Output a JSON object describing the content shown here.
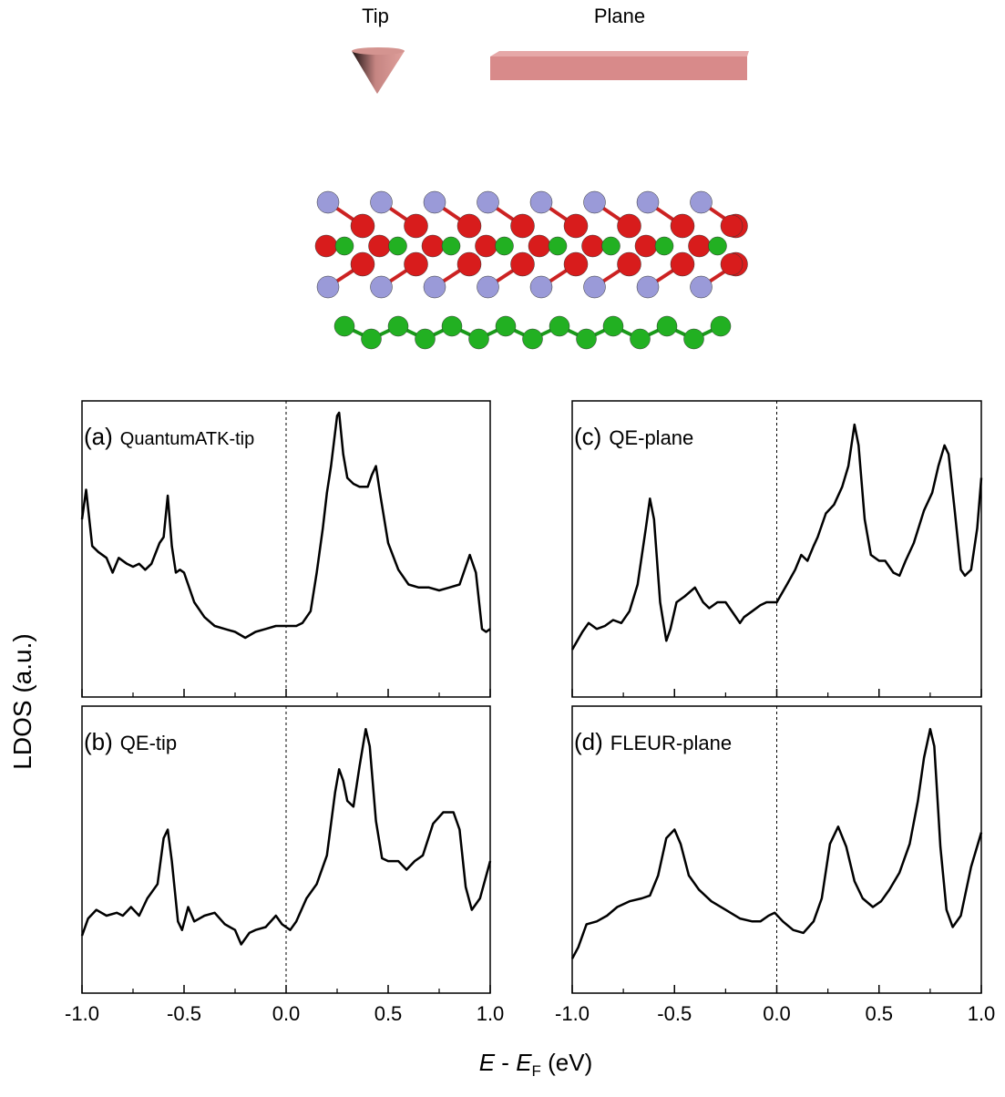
{
  "schematic": {
    "tip": "Tip",
    "plane": "Plane"
  },
  "axis_labels": {
    "y": "LDOS (a.u.)",
    "x": [
      "E",
      " - ",
      "E",
      "F",
      " (eV)"
    ]
  },
  "chart_data": [
    {
      "type": "line",
      "panel": "(a)",
      "label": "QuantumATK-tip",
      "color": "#000000",
      "xlim": [
        -1,
        1
      ],
      "ylim": [
        0,
        100
      ],
      "xticks": [
        -1,
        -0.5,
        0,
        0.5,
        1
      ],
      "xminorticks": [
        -0.75,
        -0.25,
        0.25,
        0.75
      ],
      "x": [
        -1.0,
        -0.98,
        -0.95,
        -0.92,
        -0.88,
        -0.85,
        -0.82,
        -0.78,
        -0.75,
        -0.72,
        -0.69,
        -0.66,
        -0.62,
        -0.6,
        -0.58,
        -0.56,
        -0.54,
        -0.52,
        -0.5,
        -0.45,
        -0.4,
        -0.35,
        -0.3,
        -0.25,
        -0.2,
        -0.15,
        -0.1,
        -0.05,
        0.0,
        0.05,
        0.08,
        0.12,
        0.15,
        0.18,
        0.2,
        0.22,
        0.25,
        0.26,
        0.28,
        0.3,
        0.33,
        0.36,
        0.4,
        0.42,
        0.44,
        0.46,
        0.5,
        0.55,
        0.6,
        0.65,
        0.7,
        0.75,
        0.8,
        0.85,
        0.9,
        0.93,
        0.96,
        0.98,
        1.0
      ],
      "values": [
        60,
        70,
        51,
        49,
        47,
        42,
        47,
        45,
        44,
        45,
        43,
        45,
        52,
        54,
        68,
        51,
        42,
        43,
        42,
        32,
        27,
        24,
        23,
        22,
        20,
        22,
        23,
        24,
        24,
        24,
        25,
        29,
        42,
        57,
        69,
        78,
        95,
        96,
        82,
        74,
        72,
        71,
        71,
        75,
        78,
        69,
        52,
        43,
        38,
        37,
        37,
        36,
        37,
        38,
        48,
        42,
        23,
        22,
        23
      ]
    },
    {
      "type": "line",
      "panel": "(b)",
      "label": "QE-tip",
      "color": "#000000",
      "xlim": [
        -1,
        1
      ],
      "ylim": [
        0,
        100
      ],
      "xticks": [
        {
          "value": -1,
          "label": "-1.0"
        },
        {
          "value": -0.5,
          "label": "-0.5"
        },
        {
          "value": 0,
          "label": "0.0"
        },
        {
          "value": 0.5,
          "label": "0.5"
        },
        {
          "value": 1,
          "label": "1.0"
        }
      ],
      "xminorticks": [
        -0.75,
        -0.25,
        0.25,
        0.75
      ],
      "x": [
        -1.0,
        -0.97,
        -0.93,
        -0.88,
        -0.83,
        -0.8,
        -0.76,
        -0.72,
        -0.68,
        -0.63,
        -0.6,
        -0.58,
        -0.56,
        -0.53,
        -0.51,
        -0.48,
        -0.45,
        -0.4,
        -0.35,
        -0.3,
        -0.25,
        -0.22,
        -0.18,
        -0.15,
        -0.1,
        -0.05,
        -0.02,
        0.02,
        0.05,
        0.1,
        0.15,
        0.2,
        0.24,
        0.26,
        0.28,
        0.3,
        0.33,
        0.36,
        0.39,
        0.41,
        0.44,
        0.47,
        0.5,
        0.55,
        0.59,
        0.63,
        0.67,
        0.72,
        0.77,
        0.82,
        0.85,
        0.88,
        0.91,
        0.95,
        1.0
      ],
      "values": [
        20,
        26,
        29,
        27,
        28,
        27,
        30,
        27,
        33,
        38,
        54,
        57,
        46,
        25,
        22,
        30,
        25,
        27,
        28,
        24,
        22,
        17,
        21,
        22,
        23,
        27,
        24,
        22,
        25,
        33,
        38,
        48,
        70,
        78,
        74,
        67,
        65,
        79,
        92,
        86,
        60,
        47,
        46,
        46,
        43,
        46,
        48,
        59,
        63,
        63,
        57,
        37,
        29,
        33,
        46
      ]
    },
    {
      "type": "line",
      "panel": "(c)",
      "label": "QE-plane",
      "color": "#000000",
      "xlim": [
        -1,
        1
      ],
      "ylim": [
        0,
        100
      ],
      "xticks": [
        -1,
        -0.5,
        0,
        0.5,
        1
      ],
      "xminorticks": [
        -0.75,
        -0.25,
        0.25,
        0.75
      ],
      "x": [
        -1.0,
        -0.95,
        -0.92,
        -0.88,
        -0.84,
        -0.8,
        -0.76,
        -0.72,
        -0.68,
        -0.64,
        -0.62,
        -0.6,
        -0.57,
        -0.54,
        -0.52,
        -0.49,
        -0.45,
        -0.4,
        -0.36,
        -0.33,
        -0.29,
        -0.25,
        -0.21,
        -0.18,
        -0.16,
        -0.12,
        -0.08,
        -0.05,
        0.0,
        0.05,
        0.09,
        0.12,
        0.15,
        0.18,
        0.2,
        0.24,
        0.28,
        0.32,
        0.35,
        0.38,
        0.4,
        0.43,
        0.46,
        0.5,
        0.53,
        0.57,
        0.6,
        0.63,
        0.67,
        0.72,
        0.76,
        0.79,
        0.82,
        0.84,
        0.87,
        0.9,
        0.92,
        0.95,
        0.98,
        1.0
      ],
      "values": [
        16,
        22,
        25,
        23,
        24,
        26,
        25,
        29,
        38,
        57,
        67,
        60,
        32,
        19,
        23,
        32,
        34,
        37,
        32,
        30,
        32,
        32,
        28,
        25,
        27,
        29,
        31,
        32,
        32,
        38,
        43,
        48,
        46,
        51,
        54,
        62,
        65,
        71,
        78,
        92,
        85,
        60,
        48,
        46,
        46,
        42,
        41,
        46,
        52,
        63,
        69,
        78,
        85,
        82,
        63,
        43,
        41,
        43,
        57,
        74
      ]
    },
    {
      "type": "line",
      "panel": "(d)",
      "label": "FLEUR-plane",
      "color": "#000000",
      "xlim": [
        -1,
        1
      ],
      "ylim": [
        0,
        100
      ],
      "xticks": [
        {
          "value": -1,
          "label": "-1.0"
        },
        {
          "value": -0.5,
          "label": "-0.5"
        },
        {
          "value": 0,
          "label": "0.0"
        },
        {
          "value": 0.5,
          "label": "0.5"
        },
        {
          "value": 1,
          "label": "1.0"
        }
      ],
      "xminorticks": [
        -0.75,
        -0.25,
        0.25,
        0.75
      ],
      "x": [
        -1.0,
        -0.97,
        -0.93,
        -0.88,
        -0.83,
        -0.78,
        -0.72,
        -0.66,
        -0.62,
        -0.58,
        -0.54,
        -0.5,
        -0.47,
        -0.43,
        -0.38,
        -0.32,
        -0.25,
        -0.18,
        -0.12,
        -0.08,
        -0.04,
        -0.01,
        0.03,
        0.08,
        0.13,
        0.18,
        0.22,
        0.26,
        0.3,
        0.34,
        0.38,
        0.42,
        0.47,
        0.51,
        0.55,
        0.6,
        0.65,
        0.69,
        0.72,
        0.75,
        0.77,
        0.8,
        0.83,
        0.86,
        0.9,
        0.95,
        1.0
      ],
      "values": [
        12,
        16,
        24,
        25,
        27,
        30,
        32,
        33,
        34,
        41,
        54,
        57,
        52,
        41,
        36,
        32,
        29,
        26,
        25,
        25,
        27,
        28,
        25,
        22,
        21,
        25,
        33,
        52,
        58,
        51,
        39,
        33,
        30,
        32,
        36,
        42,
        52,
        67,
        82,
        92,
        86,
        51,
        29,
        23,
        27,
        44,
        56
      ]
    }
  ]
}
